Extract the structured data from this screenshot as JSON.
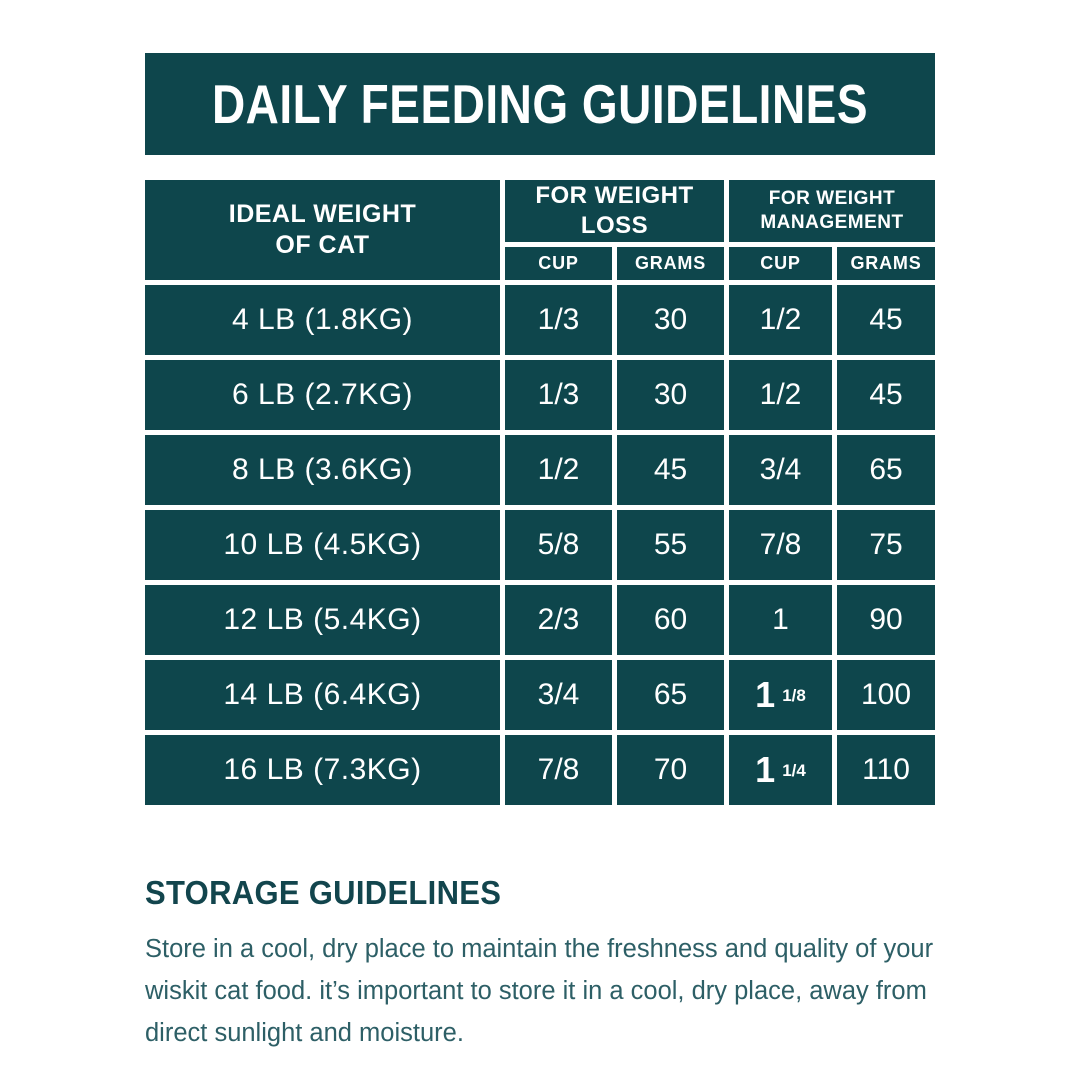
{
  "colors": {
    "teal": "#0E464C",
    "heading_text": "#12454D",
    "body_text": "#2D5F66",
    "background": "#FFFFFF",
    "table_text": "#FFFFFF"
  },
  "banner": {
    "title": "DAILY FEEDING GUIDELINES"
  },
  "table": {
    "col1_header": "IDEAL WEIGHT\nOF CAT",
    "group_headers": [
      "FOR WEIGHT LOSS",
      "FOR WEIGHT\nMANAGEMENT"
    ],
    "sub_headers": [
      "CUP",
      "GRAMS",
      "CUP",
      "GRAMS"
    ],
    "rows": [
      {
        "weight": "4 LB (1.8KG)",
        "loss_cup": "1/3",
        "loss_grams": "30",
        "mgmt_cup": "1/2",
        "mgmt_grams": "45"
      },
      {
        "weight": "6 LB (2.7KG)",
        "loss_cup": "1/3",
        "loss_grams": "30",
        "mgmt_cup": "1/2",
        "mgmt_grams": "45"
      },
      {
        "weight": "8 LB (3.6KG)",
        "loss_cup": "1/2",
        "loss_grams": "45",
        "mgmt_cup": "3/4",
        "mgmt_grams": "65"
      },
      {
        "weight": "10 LB (4.5KG)",
        "loss_cup": "5/8",
        "loss_grams": "55",
        "mgmt_cup": "7/8",
        "mgmt_grams": "75"
      },
      {
        "weight": "12 LB (5.4KG)",
        "loss_cup": "2/3",
        "loss_grams": "60",
        "mgmt_cup": "1",
        "mgmt_grams": "90"
      },
      {
        "weight": "14 LB (6.4KG)",
        "loss_cup": "3/4",
        "loss_grams": "65",
        "mgmt_cup": "1 1/8",
        "mgmt_grams": "100"
      },
      {
        "weight": "16 LB (7.3KG)",
        "loss_cup": "7/8",
        "loss_grams": "70",
        "mgmt_cup": "1 1/4",
        "mgmt_grams": "110"
      }
    ]
  },
  "storage": {
    "heading": "STORAGE GUIDELINES",
    "body": "Store in a cool, dry place to maintain the freshness and quality of your wiskit cat food. it’s important to store it in a cool, dry place, away from direct sunlight and moisture."
  }
}
